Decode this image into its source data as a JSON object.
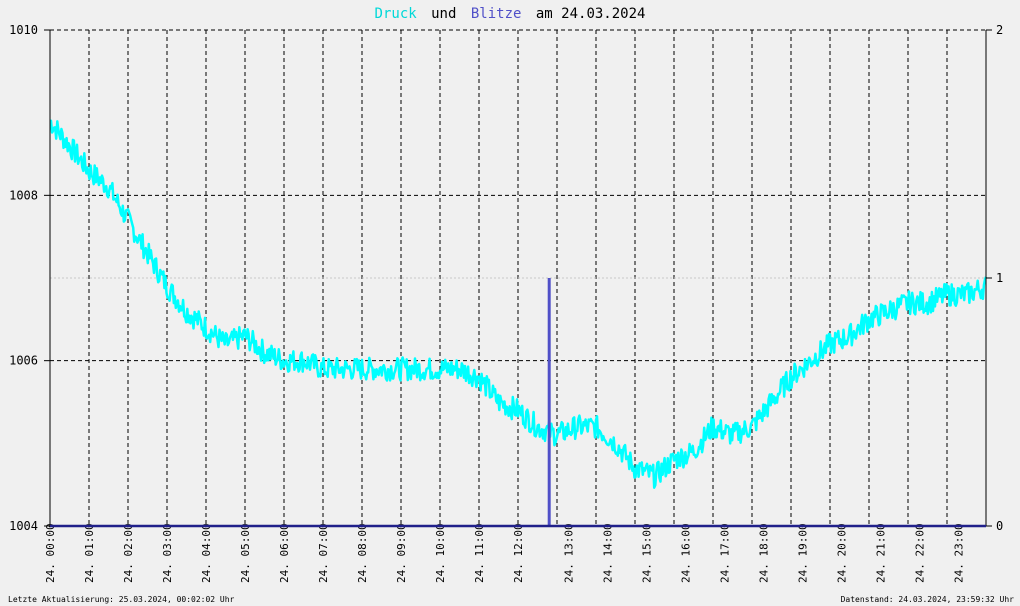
{
  "title": {
    "part1": "Druck",
    "part2": "und",
    "part3": "Blitze",
    "part4": "am 24.03.2024"
  },
  "colors": {
    "pressure": "#00ffff",
    "lightning": "#5050c8",
    "axis": "#20208a",
    "grid": "#000000",
    "background": "#f0f0f0"
  },
  "footer": {
    "left": "Letzte Aktualisierung: 25.03.2024, 00:02:02 Uhr",
    "right": "Datenstand: 24.03.2024, 23:59:32 Uhr"
  },
  "chart_data": {
    "type": "line",
    "title": "Druck und Blitze am 24.03.2024",
    "x_tick_labels": [
      "24. 00:00",
      "24. 01:00",
      "24. 02:00",
      "24. 03:00",
      "24. 04:00",
      "24. 05:00",
      "24. 06:00",
      "24. 07:00",
      "24. 08:00",
      "24. 09:00",
      "24. 10:00",
      "24. 11:00",
      "24. 12:00",
      "24. 13:00",
      "24. 14:00",
      "24. 15:00",
      "24. 16:00",
      "24. 17:00",
      "24. 18:00",
      "24. 19:00",
      "24. 20:00",
      "24. 21:00",
      "24. 22:00",
      "24. 23:00"
    ],
    "y_left": {
      "ylim": [
        1004,
        1010
      ],
      "ticks": [
        "1004",
        "1006",
        "1008",
        "1010"
      ]
    },
    "y_right": {
      "ylim": [
        0,
        2
      ],
      "ticks": [
        "0",
        "1",
        "2"
      ]
    },
    "grid": true,
    "series": [
      {
        "name": "Druck",
        "axis": "left",
        "x_hours": [
          0,
          0.5,
          1,
          1.5,
          2,
          2.5,
          3,
          3.5,
          4,
          4.5,
          5,
          5.5,
          6,
          6.5,
          7,
          7.5,
          8,
          8.5,
          9,
          9.5,
          10,
          10.5,
          11,
          11.5,
          12,
          12.5,
          13,
          13.5,
          14,
          14.5,
          15,
          15.5,
          16,
          16.5,
          17,
          17.5,
          18,
          18.5,
          19,
          19.5,
          20,
          20.5,
          21,
          21.5,
          22,
          22.5,
          23,
          23.5,
          24
        ],
        "values": [
          1008.9,
          1008.6,
          1008.3,
          1008.1,
          1007.7,
          1007.3,
          1006.9,
          1006.6,
          1006.4,
          1006.2,
          1006.3,
          1006.1,
          1006.0,
          1006.0,
          1005.9,
          1005.9,
          1005.9,
          1005.9,
          1005.9,
          1005.9,
          1005.9,
          1005.9,
          1005.8,
          1005.5,
          1005.4,
          1005.2,
          1005.1,
          1005.2,
          1005.2,
          1005.0,
          1004.7,
          1004.6,
          1004.8,
          1004.9,
          1005.2,
          1005.1,
          1005.2,
          1005.5,
          1005.8,
          1006.0,
          1006.2,
          1006.3,
          1006.5,
          1006.6,
          1006.7,
          1006.7,
          1006.8,
          1006.8,
          1006.9
        ]
      },
      {
        "name": "Blitze",
        "axis": "right",
        "type": "bar",
        "x_hours": [
          12.8
        ],
        "values": [
          1
        ]
      }
    ]
  }
}
